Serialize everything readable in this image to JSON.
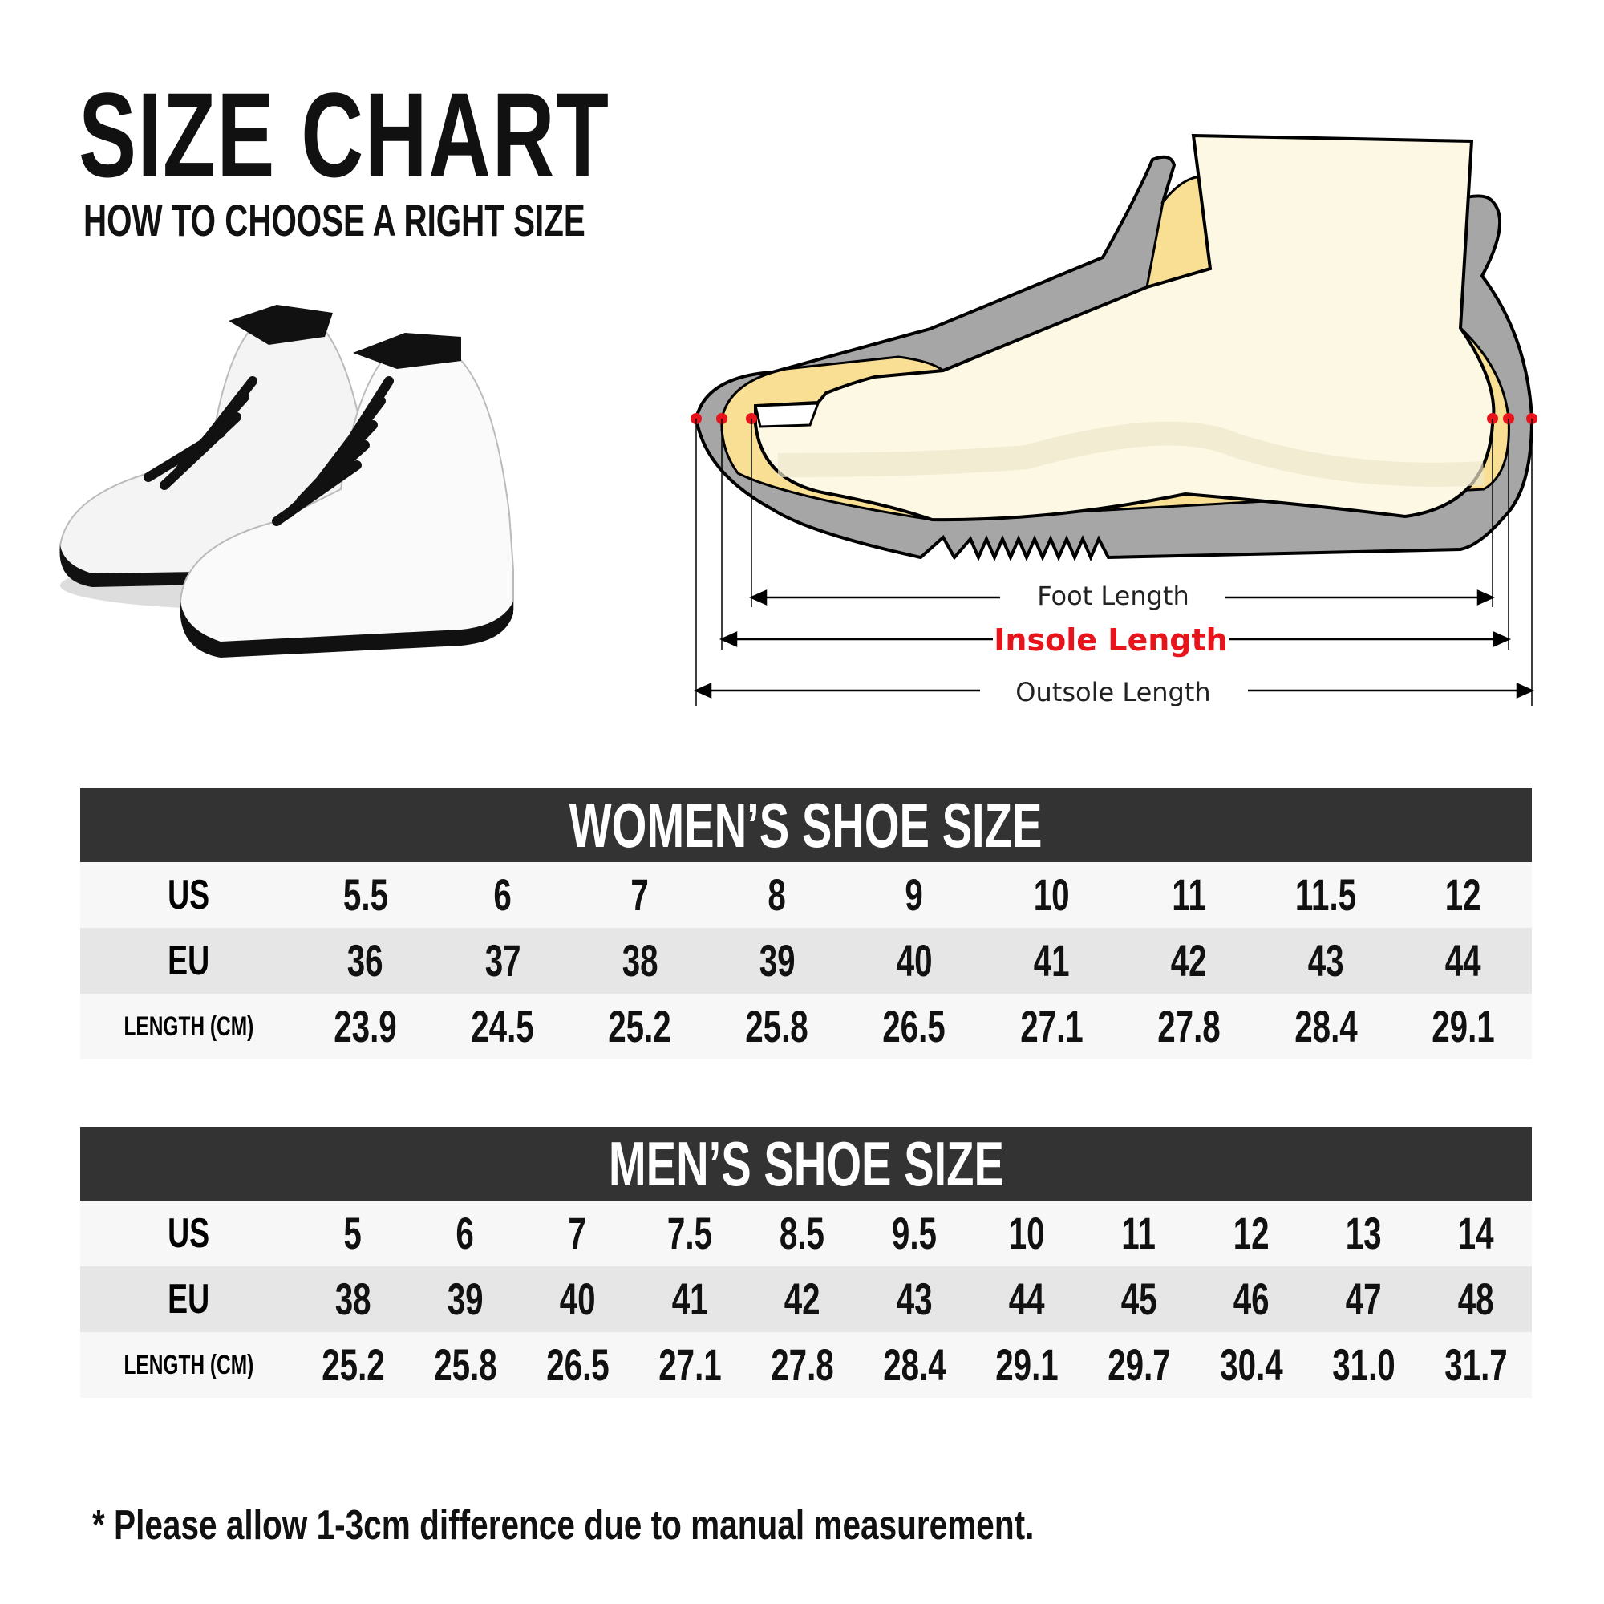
{
  "header": {
    "title": "SIZE CHART",
    "subtitle": "HOW TO CHOOSE A RIGHT SIZE"
  },
  "diagram": {
    "foot_length_label": "Foot Length",
    "insole_length_label": "Insole Length",
    "outsole_length_label": "Outsole Length",
    "colors": {
      "sole": "#a6a6a6",
      "foot": "#fdf8e4",
      "insole": "#f8df94",
      "highlight": "#e8141b"
    }
  },
  "women": {
    "title": "WOMEN’S SHOE SIZE",
    "rows": [
      {
        "label": "US",
        "values": [
          "5.5",
          "6",
          "7",
          "8",
          "9",
          "10",
          "11",
          "11.5",
          "12"
        ]
      },
      {
        "label": "EU",
        "values": [
          "36",
          "37",
          "38",
          "39",
          "40",
          "41",
          "42",
          "43",
          "44"
        ]
      },
      {
        "label": "LENGTH (CM)",
        "values": [
          "23.9",
          "24.5",
          "25.2",
          "25.8",
          "26.5",
          "27.1",
          "27.8",
          "28.4",
          "29.1"
        ]
      }
    ]
  },
  "men": {
    "title": "MEN’S SHOE SIZE",
    "rows": [
      {
        "label": "US",
        "values": [
          "5",
          "6",
          "7",
          "7.5",
          "8.5",
          "9.5",
          "10",
          "11",
          "12",
          "13",
          "14"
        ]
      },
      {
        "label": "EU",
        "values": [
          "38",
          "39",
          "40",
          "41",
          "42",
          "43",
          "44",
          "45",
          "46",
          "47",
          "48"
        ]
      },
      {
        "label": "LENGTH (CM)",
        "values": [
          "25.2",
          "25.8",
          "26.5",
          "27.1",
          "27.8",
          "28.4",
          "29.1",
          "29.7",
          "30.4",
          "31.0",
          "31.7"
        ]
      }
    ]
  },
  "footnote": "* Please allow 1-3cm difference due to manual measurement."
}
